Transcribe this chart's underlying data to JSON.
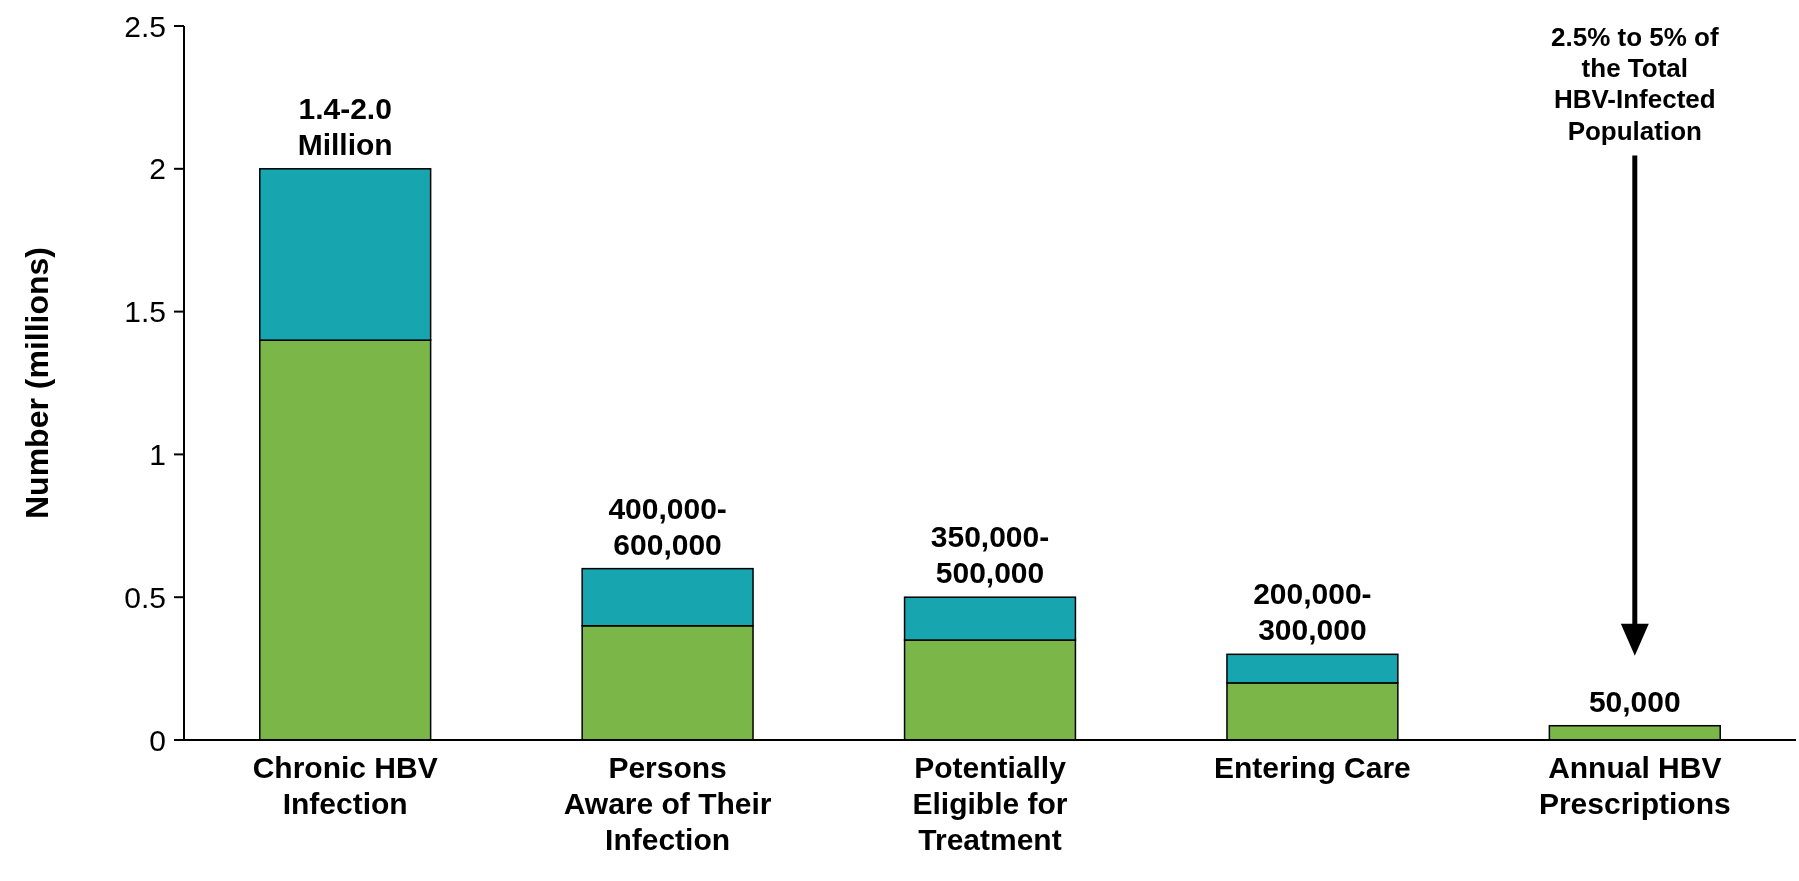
{
  "chart_data": {
    "type": "bar",
    "stacked": true,
    "ylabel": "Number (millions)",
    "categories": [
      "Chronic HBV Infection",
      "Persons Aware of Their Infection",
      "Potentially Eligible for Treatment",
      "Entering Care",
      "Annual HBV Prescriptions"
    ],
    "series": [
      {
        "color": "#7ab648",
        "values": [
          1.4,
          0.4,
          0.35,
          0.2,
          0.05
        ]
      },
      {
        "color": "#17a5b0",
        "values": [
          0.6,
          0.2,
          0.15,
          0.1,
          0
        ]
      }
    ],
    "totals": [
      "1.4-2.0 Million",
      "400,000-600,000",
      "350,000-500,000",
      "200,000-300,000",
      "50,000"
    ],
    "annotations": [
      "2.5% to 5% of the Total HBV-Infected Population"
    ],
    "ylim": [
      0,
      2.5
    ],
    "yticks": [
      0,
      0.5,
      1,
      1.5,
      2,
      2.5
    ],
    "grid": false
  }
}
